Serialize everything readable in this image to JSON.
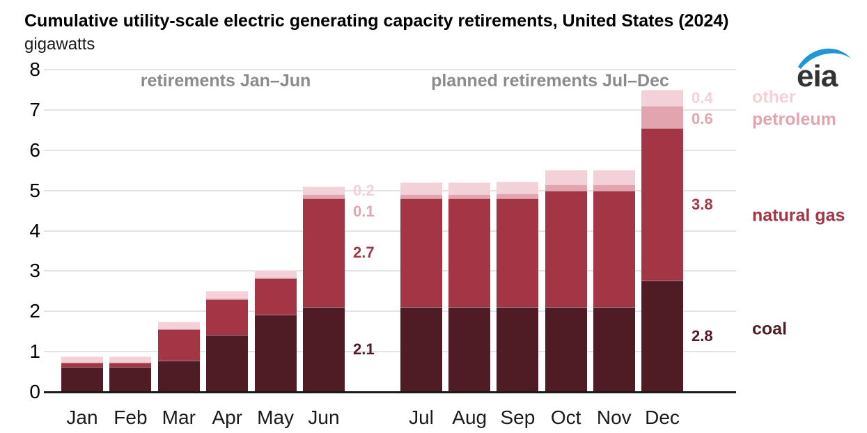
{
  "title": "Cumulative utility-scale electric generating capacity retirements, United States (2024)",
  "subtitle": "gigawatts",
  "logo": {
    "text": "eia",
    "swoosh_color": "#2196d6",
    "text_color": "#333333"
  },
  "section_headers": {
    "left": "retirements Jan–Jun",
    "right": "planned retirements Jul–Dec"
  },
  "colors": {
    "coal": "#4f1b24",
    "natural_gas": "#a43545",
    "petroleum": "#e2a4ae",
    "other": "#f2d1d8",
    "gridline": "#e3e3e5",
    "axis": "#1a1a1a",
    "header_gray": "#8a8a8f"
  },
  "chart_data": {
    "type": "bar",
    "stacked": true,
    "title": "Cumulative utility-scale electric generating capacity retirements, United States (2024)",
    "ylabel": "gigawatts",
    "ylim": [
      0,
      8
    ],
    "ytick_labels": [
      "0",
      "1",
      "2",
      "3",
      "4",
      "5",
      "6",
      "7",
      "8"
    ],
    "grid": true,
    "categories": [
      "Jan",
      "Feb",
      "Mar",
      "Apr",
      "May",
      "Jun",
      "Jul",
      "Aug",
      "Sep",
      "Oct",
      "Nov",
      "Dec"
    ],
    "series": [
      {
        "name": "coal",
        "color": "#4f1b24",
        "values": [
          0.62,
          0.62,
          0.78,
          1.42,
          1.92,
          2.1,
          2.1,
          2.1,
          2.1,
          2.1,
          2.1,
          2.76
        ]
      },
      {
        "name": "natural gas",
        "color": "#a43545",
        "values": [
          0.1,
          0.1,
          0.77,
          0.88,
          0.9,
          2.7,
          2.7,
          2.7,
          2.7,
          2.9,
          2.9,
          3.79
        ]
      },
      {
        "name": "petroleum",
        "color": "#e2a4ae",
        "values": [
          0.02,
          0.02,
          0.02,
          0.03,
          0.03,
          0.1,
          0.1,
          0.1,
          0.12,
          0.15,
          0.15,
          0.55
        ]
      },
      {
        "name": "other",
        "color": "#f2d1d8",
        "values": [
          0.14,
          0.14,
          0.17,
          0.17,
          0.18,
          0.2,
          0.3,
          0.3,
          0.3,
          0.37,
          0.37,
          0.4
        ]
      }
    ],
    "annotations": [
      {
        "category": "Jun",
        "labels": [
          {
            "series": "other",
            "text": "0.2"
          },
          {
            "series": "petroleum",
            "text": "0.1"
          },
          {
            "series": "natural gas",
            "text": "2.7"
          },
          {
            "series": "coal",
            "text": "2.1"
          }
        ]
      },
      {
        "category": "Dec",
        "labels": [
          {
            "series": "other",
            "text": "0.4"
          },
          {
            "series": "petroleum",
            "text": "0.6"
          },
          {
            "series": "natural gas",
            "text": "3.8"
          },
          {
            "series": "coal",
            "text": "2.8"
          }
        ]
      }
    ],
    "legend": {
      "position": "right",
      "entries": [
        {
          "label": "other",
          "color": "#f2d1d8"
        },
        {
          "label": "petroleum",
          "color": "#e2a4ae"
        },
        {
          "label": "natural gas",
          "color": "#a43545"
        },
        {
          "label": "coal",
          "color": "#4f1b24"
        }
      ]
    }
  }
}
